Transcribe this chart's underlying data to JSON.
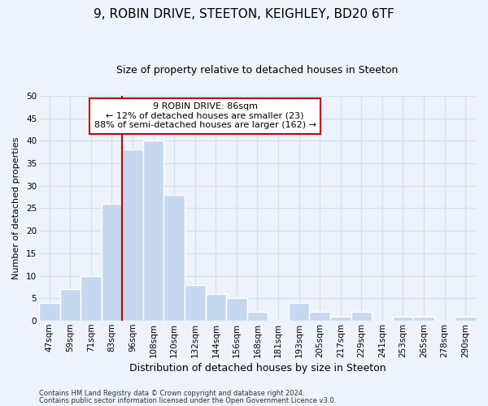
{
  "title_line1": "9, ROBIN DRIVE, STEETON, KEIGHLEY, BD20 6TF",
  "title_line2": "Size of property relative to detached houses in Steeton",
  "xlabel": "Distribution of detached houses by size in Steeton",
  "ylabel": "Number of detached properties",
  "categories": [
    "47sqm",
    "59sqm",
    "71sqm",
    "83sqm",
    "96sqm",
    "108sqm",
    "120sqm",
    "132sqm",
    "144sqm",
    "156sqm",
    "168sqm",
    "181sqm",
    "193sqm",
    "205sqm",
    "217sqm",
    "229sqm",
    "241sqm",
    "253sqm",
    "265sqm",
    "278sqm",
    "290sqm"
  ],
  "values": [
    4,
    7,
    10,
    26,
    38,
    40,
    28,
    8,
    6,
    5,
    2,
    0,
    4,
    2,
    1,
    2,
    0,
    1,
    1,
    0,
    1
  ],
  "bar_color": "#c5d8f0",
  "bar_edge_color": "#ffffff",
  "vline_x_index": 3.5,
  "vline_color": "#cc0000",
  "annotation_text_line1": "9 ROBIN DRIVE: 86sqm",
  "annotation_text_line2": "← 12% of detached houses are smaller (23)",
  "annotation_text_line3": "88% of semi-detached houses are larger (162) →",
  "annotation_box_facecolor": "#ffffff",
  "annotation_box_edgecolor": "#cc0000",
  "ylim": [
    0,
    50
  ],
  "yticks": [
    0,
    5,
    10,
    15,
    20,
    25,
    30,
    35,
    40,
    45,
    50
  ],
  "grid_color": "#d5dff0",
  "background_color": "#edf2fb",
  "title1_fontsize": 11,
  "title2_fontsize": 9,
  "xlabel_fontsize": 9,
  "ylabel_fontsize": 8,
  "tick_fontsize": 7.5,
  "footer_line1": "Contains HM Land Registry data © Crown copyright and database right 2024.",
  "footer_line2": "Contains public sector information licensed under the Open Government Licence v3.0."
}
